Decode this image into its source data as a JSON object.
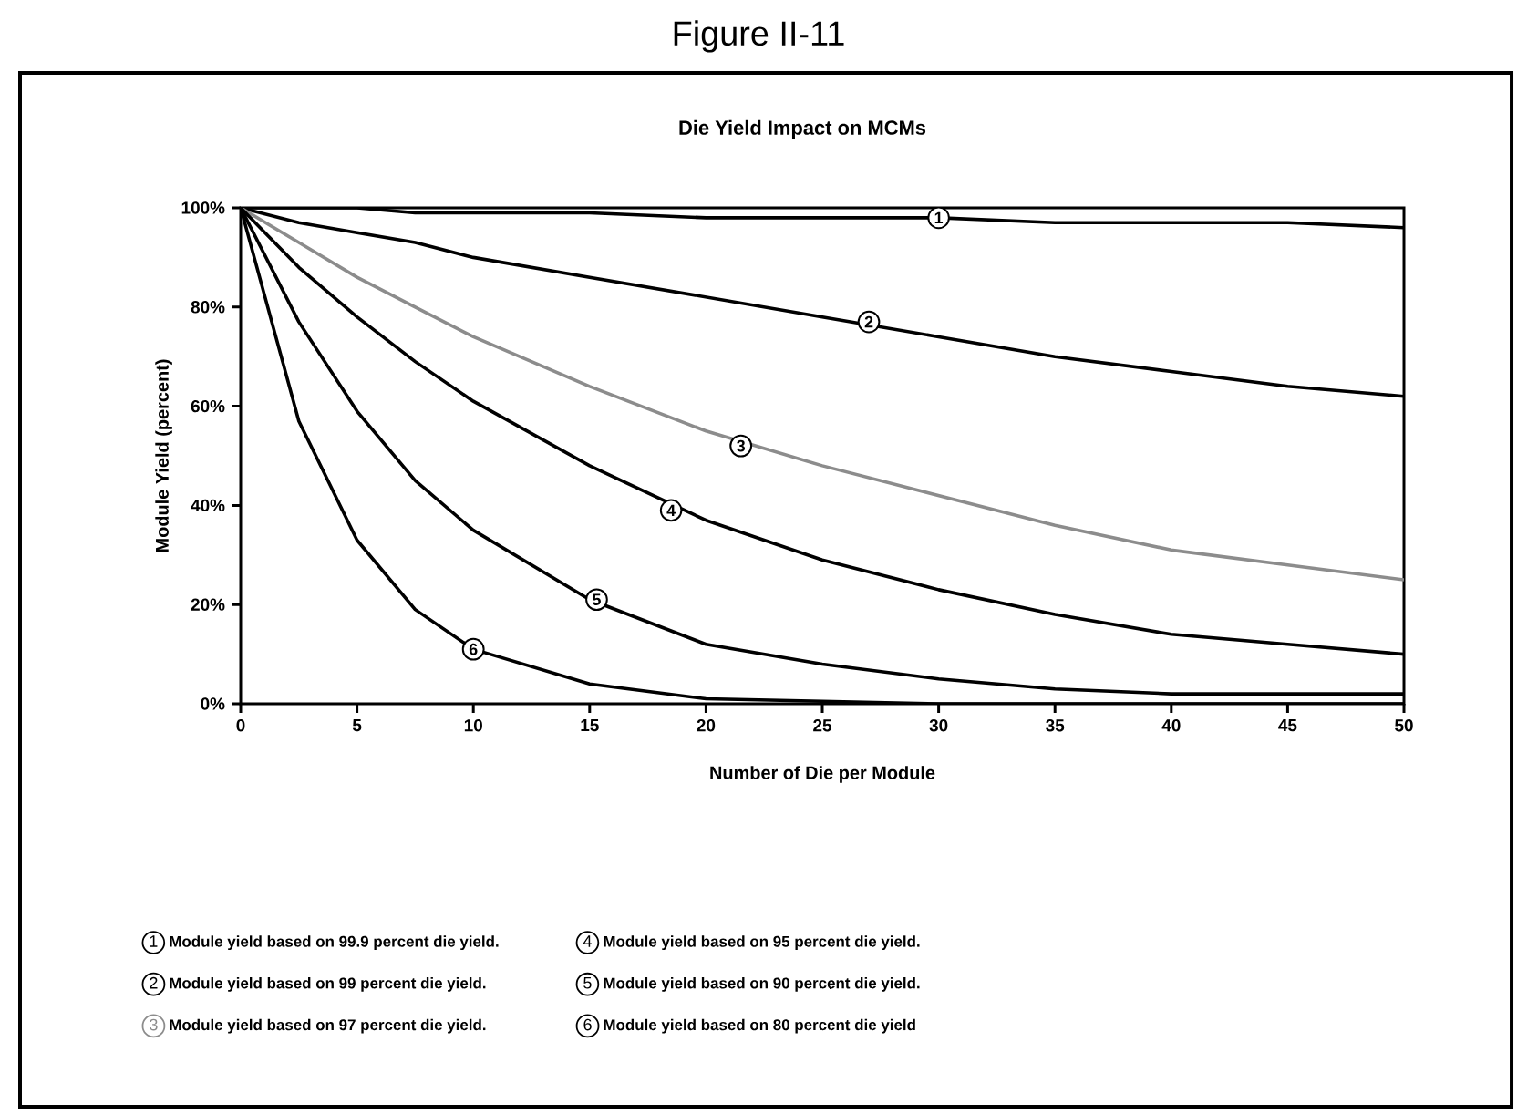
{
  "chart_data": {
    "type": "line",
    "title": "Figure II-11",
    "subtitle": "Die Yield Impact on MCMs",
    "xlabel": "Number of Die per Module",
    "ylabel": "Module Yield (percent)",
    "x": [
      0,
      2.5,
      5,
      7.5,
      10,
      15,
      20,
      25,
      30,
      35,
      40,
      45,
      50
    ],
    "xlim": [
      0,
      50
    ],
    "xticks": [
      0,
      5,
      10,
      15,
      20,
      25,
      30,
      35,
      40,
      45,
      50
    ],
    "ylim": [
      0,
      100
    ],
    "yticks": [
      {
        "value": 0,
        "label": "0%"
      },
      {
        "value": 20,
        "label": "20%"
      },
      {
        "value": 40,
        "label": "40%"
      },
      {
        "value": 60,
        "label": "60%"
      },
      {
        "value": 80,
        "label": "80%"
      },
      {
        "value": 100,
        "label": "100%"
      }
    ],
    "series": [
      {
        "name": "Module yield based on 99.9 percent die yield.",
        "color": "#000000",
        "values": [
          100,
          100,
          100,
          99,
          99,
          99,
          98,
          98,
          98,
          97,
          97,
          97,
          96
        ]
      },
      {
        "name": "Module yield based on 99 percent die yield.",
        "color": "#000000",
        "values": [
          100,
          97,
          95,
          93,
          90,
          86,
          82,
          78,
          74,
          70,
          67,
          64,
          62
        ]
      },
      {
        "name": "Module yield based on 97 percent die yield.",
        "color": "#8c8c8c",
        "values": [
          100,
          93,
          86,
          80,
          74,
          64,
          55,
          48,
          42,
          36,
          31,
          28,
          25
        ]
      },
      {
        "name": "Module yield based on 95 percent die yield.",
        "color": "#000000",
        "values": [
          100,
          88,
          78,
          69,
          61,
          48,
          37,
          29,
          23,
          18,
          14,
          12,
          10
        ]
      },
      {
        "name": "Module yield based on 90 percent die yield.",
        "color": "#000000",
        "values": [
          100,
          77,
          59,
          45,
          35,
          21,
          12,
          8,
          5,
          3,
          2,
          2,
          2
        ]
      },
      {
        "name": "Module yield based on 80 percent die yield",
        "color": "#000000",
        "values": [
          100,
          57,
          33,
          19,
          11,
          4,
          1,
          0.5,
          0,
          0,
          0,
          0,
          0
        ]
      }
    ],
    "annotations": [
      {
        "text": "1",
        "x": 30,
        "y": 98
      },
      {
        "text": "2",
        "x": 27,
        "y": 77
      },
      {
        "text": "3",
        "x": 21.5,
        "y": 52
      },
      {
        "text": "4",
        "x": 18.5,
        "y": 39
      },
      {
        "text": "5",
        "x": 15.3,
        "y": 21
      },
      {
        "text": "6",
        "x": 10,
        "y": 11
      }
    ],
    "legend": "bottom",
    "grid": false,
    "marker": "none",
    "line_style": "solid"
  }
}
